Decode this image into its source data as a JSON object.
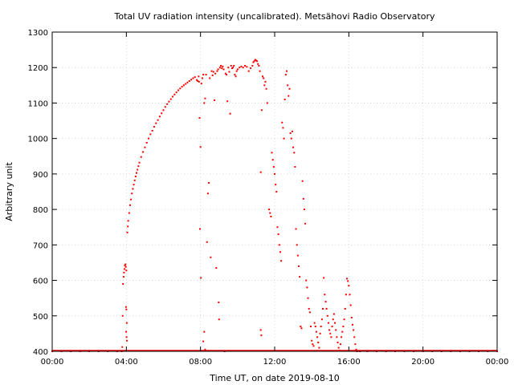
{
  "chart_data": {
    "type": "scatter",
    "title": "Total UV radiation intensity (uncalibrated). Metsähovi Radio Observatory",
    "xlabel": "Time UT, on date 2019-08-10",
    "ylabel": "Arbitrary unit",
    "xlim": [
      0,
      24
    ],
    "ylim": [
      400,
      1300
    ],
    "x_ticks": [
      0,
      4,
      8,
      12,
      16,
      20,
      24
    ],
    "x_tick_labels": [
      "00:00",
      "04:00",
      "08:00",
      "12:00",
      "16:00",
      "20:00",
      "00:00"
    ],
    "y_ticks": [
      400,
      500,
      600,
      700,
      800,
      900,
      1000,
      1100,
      1200,
      1300
    ],
    "y_tick_labels": [
      "400",
      "500",
      "600",
      "700",
      "800",
      "900",
      "1000",
      "1100",
      "1200",
      "1300"
    ],
    "grid": true,
    "color": "#ff0000",
    "series": [
      {
        "points": [
          [
            0.0,
            400
          ],
          [
            0.5,
            400
          ],
          [
            1.0,
            400
          ],
          [
            1.5,
            400
          ],
          [
            2.0,
            400
          ],
          [
            2.5,
            400
          ],
          [
            3.0,
            400
          ],
          [
            3.5,
            400
          ],
          [
            3.75,
            400
          ],
          [
            3.78,
            412
          ],
          [
            3.8,
            500
          ],
          [
            3.82,
            590
          ],
          [
            3.85,
            610
          ],
          [
            3.87,
            622
          ],
          [
            3.9,
            632
          ],
          [
            3.92,
            642
          ],
          [
            3.95,
            645
          ],
          [
            3.97,
            638
          ],
          [
            4.0,
            628
          ],
          [
            3.98,
            525
          ],
          [
            4.0,
            518
          ],
          [
            4.02,
            480
          ],
          [
            3.99,
            455
          ],
          [
            4.01,
            440
          ],
          [
            4.03,
            430
          ],
          [
            4.05,
            735
          ],
          [
            4.08,
            752
          ],
          [
            4.1,
            768
          ],
          [
            4.15,
            790
          ],
          [
            4.2,
            812
          ],
          [
            4.25,
            828
          ],
          [
            4.3,
            845
          ],
          [
            4.35,
            858
          ],
          [
            4.4,
            870
          ],
          [
            4.45,
            882
          ],
          [
            4.5,
            893
          ],
          [
            4.55,
            903
          ],
          [
            4.6,
            912
          ],
          [
            4.65,
            922
          ],
          [
            4.7,
            932
          ],
          [
            4.8,
            948
          ],
          [
            4.9,
            962
          ],
          [
            5.0,
            975
          ],
          [
            5.1,
            988
          ],
          [
            5.2,
            1000
          ],
          [
            5.3,
            1012
          ],
          [
            5.4,
            1022
          ],
          [
            5.5,
            1033
          ],
          [
            5.6,
            1043
          ],
          [
            5.7,
            1052
          ],
          [
            5.8,
            1062
          ],
          [
            5.9,
            1071
          ],
          [
            6.0,
            1080
          ],
          [
            6.1,
            1089
          ],
          [
            6.2,
            1097
          ],
          [
            6.3,
            1104
          ],
          [
            6.4,
            1111
          ],
          [
            6.5,
            1118
          ],
          [
            6.6,
            1124
          ],
          [
            6.7,
            1130
          ],
          [
            6.8,
            1136
          ],
          [
            6.9,
            1141
          ],
          [
            7.0,
            1146
          ],
          [
            7.1,
            1150
          ],
          [
            7.2,
            1154
          ],
          [
            7.3,
            1158
          ],
          [
            7.4,
            1162
          ],
          [
            7.5,
            1166
          ],
          [
            7.6,
            1170
          ],
          [
            7.7,
            1173
          ],
          [
            7.8,
            1165
          ],
          [
            7.85,
            1162
          ],
          [
            7.9,
            1175
          ],
          [
            7.92,
            1160
          ],
          [
            7.95,
            1058
          ],
          [
            8.0,
            976
          ],
          [
            7.97,
            745
          ],
          [
            8.02,
            607
          ],
          [
            8.05,
            1155
          ],
          [
            8.1,
            1170
          ],
          [
            8.15,
            1180
          ],
          [
            8.2,
            1100
          ],
          [
            8.25,
            1113
          ],
          [
            8.15,
            428
          ],
          [
            8.2,
            455
          ],
          [
            8.25,
            405
          ],
          [
            8.3,
            1180
          ],
          [
            8.35,
            708
          ],
          [
            8.4,
            845
          ],
          [
            8.45,
            875
          ],
          [
            8.5,
            1170
          ],
          [
            8.55,
            665
          ],
          [
            8.6,
            1190
          ],
          [
            8.65,
            1178
          ],
          [
            8.7,
            1188
          ],
          [
            8.75,
            1108
          ],
          [
            8.8,
            1183
          ],
          [
            8.85,
            635
          ],
          [
            8.9,
            1190
          ],
          [
            8.95,
            1195
          ],
          [
            9.0,
            490
          ],
          [
            8.98,
            538
          ],
          [
            9.05,
            1200
          ],
          [
            9.1,
            1205
          ],
          [
            9.15,
            1198
          ],
          [
            9.2,
            1203
          ],
          [
            9.25,
            1195
          ],
          [
            9.3,
            400
          ],
          [
            9.35,
            1183
          ],
          [
            9.4,
            1180
          ],
          [
            9.45,
            1105
          ],
          [
            9.5,
            1200
          ],
          [
            9.55,
            1188
          ],
          [
            9.6,
            1070
          ],
          [
            9.65,
            1205
          ],
          [
            9.7,
            1198
          ],
          [
            9.75,
            1200
          ],
          [
            9.8,
            1205
          ],
          [
            9.85,
            1180
          ],
          [
            9.9,
            1175
          ],
          [
            9.95,
            1190
          ],
          [
            10.0,
            1195
          ],
          [
            10.1,
            1200
          ],
          [
            10.2,
            1203
          ],
          [
            10.3,
            1200
          ],
          [
            10.4,
            1205
          ],
          [
            10.5,
            1202
          ],
          [
            10.6,
            1190
          ],
          [
            10.7,
            1198
          ],
          [
            10.8,
            1205
          ],
          [
            10.85,
            1215
          ],
          [
            10.9,
            1218
          ],
          [
            10.95,
            1222
          ],
          [
            11.0,
            1220
          ],
          [
            11.05,
            1218
          ],
          [
            11.1,
            1210
          ],
          [
            11.15,
            1205
          ],
          [
            11.2,
            1190
          ],
          [
            11.25,
            905
          ],
          [
            11.3,
            1080
          ],
          [
            11.35,
            1175
          ],
          [
            11.4,
            1170
          ],
          [
            11.45,
            1150
          ],
          [
            11.5,
            1160
          ],
          [
            11.55,
            1140
          ],
          [
            11.6,
            1100
          ],
          [
            11.25,
            460
          ],
          [
            11.28,
            445
          ],
          [
            11.7,
            800
          ],
          [
            11.75,
            790
          ],
          [
            11.8,
            780
          ],
          [
            11.85,
            960
          ],
          [
            11.9,
            940
          ],
          [
            11.95,
            920
          ],
          [
            12.0,
            900
          ],
          [
            12.05,
            870
          ],
          [
            12.1,
            850
          ],
          [
            12.15,
            750
          ],
          [
            12.2,
            730
          ],
          [
            12.25,
            700
          ],
          [
            12.3,
            680
          ],
          [
            12.35,
            655
          ],
          [
            12.4,
            1045
          ],
          [
            12.45,
            1030
          ],
          [
            12.5,
            1000
          ],
          [
            12.55,
            1110
          ],
          [
            12.6,
            1180
          ],
          [
            12.65,
            1190
          ],
          [
            12.7,
            1150
          ],
          [
            12.75,
            1120
          ],
          [
            12.8,
            1140
          ],
          [
            12.85,
            1015
          ],
          [
            12.9,
            1000
          ],
          [
            12.95,
            1020
          ],
          [
            13.0,
            975
          ],
          [
            13.05,
            960
          ],
          [
            13.1,
            920
          ],
          [
            13.15,
            745
          ],
          [
            13.2,
            700
          ],
          [
            13.25,
            670
          ],
          [
            13.3,
            640
          ],
          [
            13.35,
            610
          ],
          [
            13.4,
            470
          ],
          [
            13.45,
            465
          ],
          [
            13.5,
            880
          ],
          [
            13.55,
            830
          ],
          [
            13.6,
            800
          ],
          [
            13.65,
            760
          ],
          [
            13.7,
            600
          ],
          [
            13.75,
            580
          ],
          [
            13.8,
            550
          ],
          [
            13.85,
            520
          ],
          [
            13.9,
            510
          ],
          [
            13.95,
            470
          ],
          [
            14.0,
            430
          ],
          [
            14.05,
            420
          ],
          [
            14.1,
            415
          ],
          [
            14.15,
            480
          ],
          [
            14.2,
            470
          ],
          [
            14.25,
            455
          ],
          [
            14.3,
            440
          ],
          [
            14.35,
            425
          ],
          [
            14.4,
            410
          ],
          [
            14.45,
            450
          ],
          [
            14.5,
            470
          ],
          [
            14.55,
            490
          ],
          [
            14.6,
            520
          ],
          [
            14.65,
            607
          ],
          [
            14.7,
            560
          ],
          [
            14.75,
            540
          ],
          [
            14.8,
            520
          ],
          [
            14.85,
            500
          ],
          [
            14.9,
            480
          ],
          [
            14.95,
            460
          ],
          [
            15.0,
            450
          ],
          [
            15.05,
            440
          ],
          [
            15.1,
            470
          ],
          [
            15.15,
            490
          ],
          [
            15.2,
            505
          ],
          [
            15.25,
            480
          ],
          [
            15.3,
            460
          ],
          [
            15.35,
            440
          ],
          [
            15.4,
            425
          ],
          [
            15.45,
            410
          ],
          [
            15.5,
            402
          ],
          [
            15.55,
            420
          ],
          [
            15.6,
            440
          ],
          [
            15.65,
            455
          ],
          [
            15.7,
            470
          ],
          [
            15.75,
            490
          ],
          [
            15.8,
            520
          ],
          [
            15.85,
            560
          ],
          [
            15.9,
            605
          ],
          [
            15.95,
            598
          ],
          [
            16.0,
            585
          ],
          [
            16.05,
            560
          ],
          [
            16.1,
            530
          ],
          [
            16.15,
            495
          ],
          [
            16.2,
            475
          ],
          [
            16.25,
            460
          ],
          [
            16.3,
            440
          ],
          [
            16.35,
            420
          ],
          [
            16.4,
            405
          ],
          [
            16.45,
            400
          ],
          [
            16.6,
            400
          ],
          [
            17.0,
            400
          ],
          [
            17.5,
            400
          ],
          [
            18.0,
            400
          ],
          [
            18.5,
            400
          ],
          [
            19.0,
            400
          ],
          [
            19.5,
            400
          ],
          [
            20.0,
            400
          ],
          [
            20.5,
            400
          ],
          [
            21.0,
            400
          ],
          [
            21.5,
            400
          ],
          [
            22.0,
            400
          ],
          [
            22.5,
            400
          ],
          [
            23.0,
            400
          ],
          [
            23.5,
            400
          ],
          [
            24.0,
            400
          ]
        ]
      }
    ]
  }
}
